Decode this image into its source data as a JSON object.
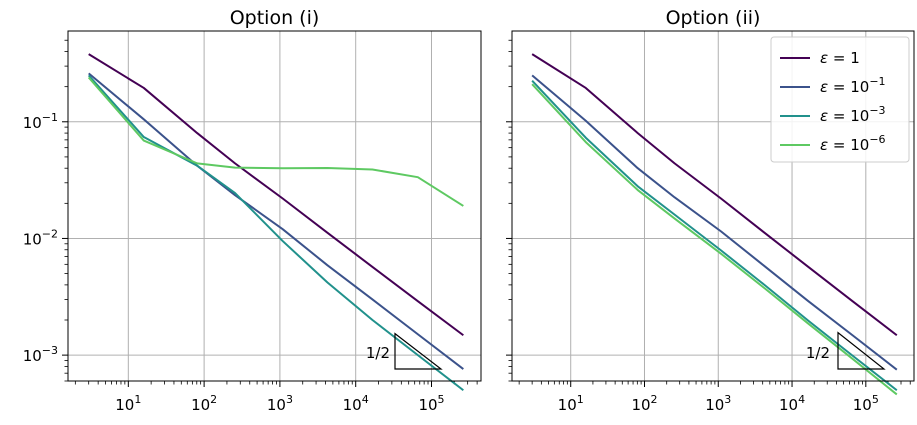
{
  "chart_data": [
    {
      "type": "line",
      "title": "Option (i)",
      "xscale": "log",
      "yscale": "log",
      "xlim": [
        1.6,
        450000
      ],
      "ylim": [
        0.0006,
        0.6
      ],
      "grid": true,
      "x_ticks": [
        10,
        100,
        1000,
        10000,
        100000
      ],
      "x_tick_labels": [
        {
          "base": "10",
          "exp": "1"
        },
        {
          "base": "10",
          "exp": "2"
        },
        {
          "base": "10",
          "exp": "3"
        },
        {
          "base": "10",
          "exp": "4"
        },
        {
          "base": "10",
          "exp": "5"
        }
      ],
      "y_ticks": [
        0.001,
        0.01,
        0.1
      ],
      "y_tick_labels": [
        {
          "base": "10",
          "exp": "−3"
        },
        {
          "base": "10",
          "exp": "−2"
        },
        {
          "base": "10",
          "exp": "−1"
        }
      ],
      "series": [
        {
          "key": "eps1",
          "color": "#440154",
          "x": [
            3,
            16,
            81,
            256,
            1089,
            4225,
            16641,
            66049,
            263169
          ],
          "y": [
            0.38,
            0.195,
            0.08,
            0.044,
            0.022,
            0.0112,
            0.0057,
            0.0029,
            0.00148
          ]
        },
        {
          "key": "eps1e-1",
          "color": "#3b528b",
          "x": [
            3,
            16,
            81,
            256,
            1089,
            4225,
            16641,
            66049,
            263169
          ],
          "y": [
            0.26,
            0.105,
            0.042,
            0.0235,
            0.012,
            0.0059,
            0.003,
            0.00151,
            0.00076
          ]
        },
        {
          "key": "eps1e-3",
          "color": "#21918c",
          "x": [
            3,
            16,
            81,
            256,
            1089,
            4225,
            16641,
            66049,
            263169
          ],
          "y": [
            0.25,
            0.074,
            0.042,
            0.0245,
            0.0095,
            0.0042,
            0.002,
            0.001,
            0.0005
          ]
        },
        {
          "key": "eps1e-6",
          "color": "#5ec962",
          "x": [
            3,
            16,
            81,
            256,
            1089,
            4225,
            16641,
            66049,
            263169
          ],
          "y": [
            0.24,
            0.069,
            0.044,
            0.0405,
            0.04,
            0.0402,
            0.039,
            0.0335,
            0.019
          ]
        }
      ],
      "annotation": {
        "text": "1/2",
        "slope": -0.5
      }
    },
    {
      "type": "line",
      "title": "Option (ii)",
      "xscale": "log",
      "yscale": "log",
      "xlim": [
        1.6,
        450000
      ],
      "ylim": [
        0.0006,
        0.6
      ],
      "grid": true,
      "x_ticks": [
        10,
        100,
        1000,
        10000,
        100000
      ],
      "x_tick_labels": [
        {
          "base": "10",
          "exp": "1"
        },
        {
          "base": "10",
          "exp": "2"
        },
        {
          "base": "10",
          "exp": "3"
        },
        {
          "base": "10",
          "exp": "4"
        },
        {
          "base": "10",
          "exp": "5"
        }
      ],
      "y_ticks": [
        0.001,
        0.01,
        0.1
      ],
      "y_tick_labels": [],
      "legend_position": "upper right",
      "series": [
        {
          "key": "eps1",
          "color": "#440154",
          "x": [
            3,
            16,
            81,
            256,
            1089,
            4225,
            16641,
            66049,
            263169
          ],
          "y": [
            0.38,
            0.195,
            0.08,
            0.044,
            0.022,
            0.0112,
            0.0057,
            0.0029,
            0.00148
          ]
        },
        {
          "key": "eps1e-1",
          "color": "#3b528b",
          "x": [
            3,
            16,
            81,
            256,
            1089,
            4225,
            16641,
            66049,
            263169
          ],
          "y": [
            0.25,
            0.102,
            0.04,
            0.0225,
            0.0115,
            0.0058,
            0.0029,
            0.00148,
            0.00075
          ]
        },
        {
          "key": "eps1e-3",
          "color": "#21918c",
          "x": [
            3,
            16,
            81,
            256,
            1089,
            4225,
            16641,
            66049,
            263169
          ],
          "y": [
            0.225,
            0.073,
            0.028,
            0.016,
            0.0079,
            0.004,
            0.00197,
            0.00099,
            0.0005
          ]
        },
        {
          "key": "eps1e-6",
          "color": "#5ec962",
          "x": [
            3,
            16,
            81,
            256,
            1089,
            4225,
            16641,
            66049,
            263169
          ],
          "y": [
            0.21,
            0.067,
            0.026,
            0.0148,
            0.0074,
            0.00375,
            0.00186,
            0.00093,
            0.00046
          ]
        }
      ],
      "legend": [
        {
          "key": "eps1",
          "color": "#440154",
          "prefix": "ε = ",
          "base": "1",
          "exp": ""
        },
        {
          "key": "eps1e-1",
          "color": "#3b528b",
          "prefix": "ε = ",
          "base": "10",
          "exp": "−1"
        },
        {
          "key": "eps1e-3",
          "color": "#21918c",
          "prefix": "ε = ",
          "base": "10",
          "exp": "−3"
        },
        {
          "key": "eps1e-6",
          "color": "#5ec962",
          "prefix": "ε = ",
          "base": "10",
          "exp": "−6"
        }
      ],
      "annotation": {
        "text": "1/2",
        "slope": -0.5
      }
    }
  ]
}
